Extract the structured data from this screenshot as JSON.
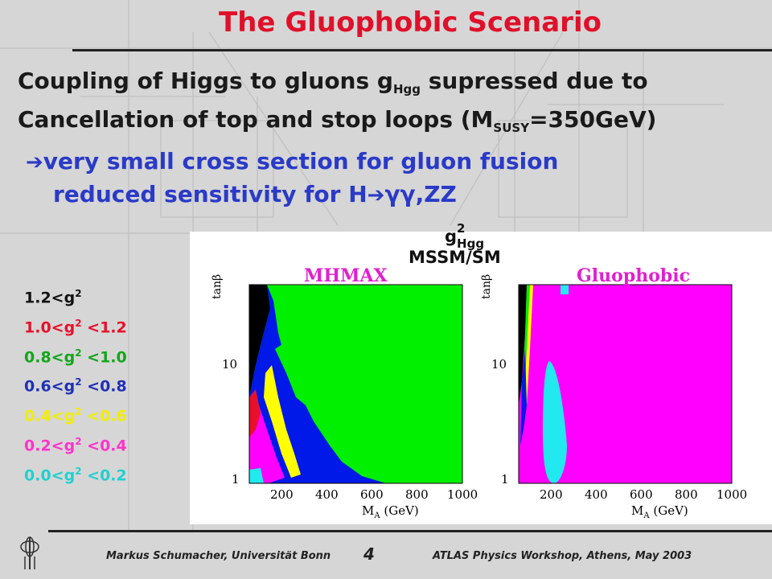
{
  "title": "The Gluophobic Scenario",
  "para": {
    "line1_pre": "Coupling of Higgs to gluons g",
    "line1_sub": "Hgg",
    "line1_post": " supressed due to",
    "line2_pre": "Cancellation of top and stop loops (M",
    "line2_sub": "SUSY",
    "line2_post": "=350GeV)"
  },
  "bullet": {
    "line1": "very small cross section for gluon fusion",
    "line2_pre": "reduced sensitivity for H",
    "line2_post": "γγ,ZZ"
  },
  "legend_header": {
    "g": "g",
    "sup": "2",
    "sub": "Hgg",
    "label": "MSSM/SM"
  },
  "legend": [
    {
      "pre": "1.2<g",
      "sup": "2",
      "post": "",
      "color": "#111111"
    },
    {
      "pre": "1.0<g",
      "sup": "2",
      "post": " <1.2",
      "color": "#e8102a"
    },
    {
      "pre": "0.8<g",
      "sup": "2",
      "post": " <1.0",
      "color": "#12a61a"
    },
    {
      "pre": "0.6<g",
      "sup": "2",
      "post": " <0.8",
      "color": "#2030b8"
    },
    {
      "pre": "0.4<g",
      "sup": "2",
      "post": " <0.6",
      "color": "#f2ee00"
    },
    {
      "pre": "0.2<g",
      "sup": "2",
      "post": " <0.4",
      "color": "#ff33cc"
    },
    {
      "pre": "0.0<g",
      "sup": "2",
      "post": " <0.2",
      "color": "#22d0d0"
    }
  ],
  "plots": {
    "left_title": "MHMAX",
    "right_title": "Gluophobic",
    "ylabel": "tanβ",
    "xlabel": "M",
    "xlabel_sub": "A",
    "xlabel_unit": " (GeV)",
    "yticks": [
      "10",
      "1"
    ],
    "xticks": [
      "200",
      "400",
      "600",
      "800",
      "1000"
    ],
    "colors": {
      "black": "#000000",
      "red": "#e8102a",
      "green": "#00f000",
      "blue": "#0018e8",
      "yellow": "#ffff00",
      "magenta": "#ff00ff",
      "cyan": "#22e8f0",
      "title_magenta": "#e020d0"
    }
  },
  "footer": {
    "author": "Markus Schumacher,  Universität Bonn",
    "page": "4",
    "event": "ATLAS Physics Workshop, Athens, May 2003"
  }
}
